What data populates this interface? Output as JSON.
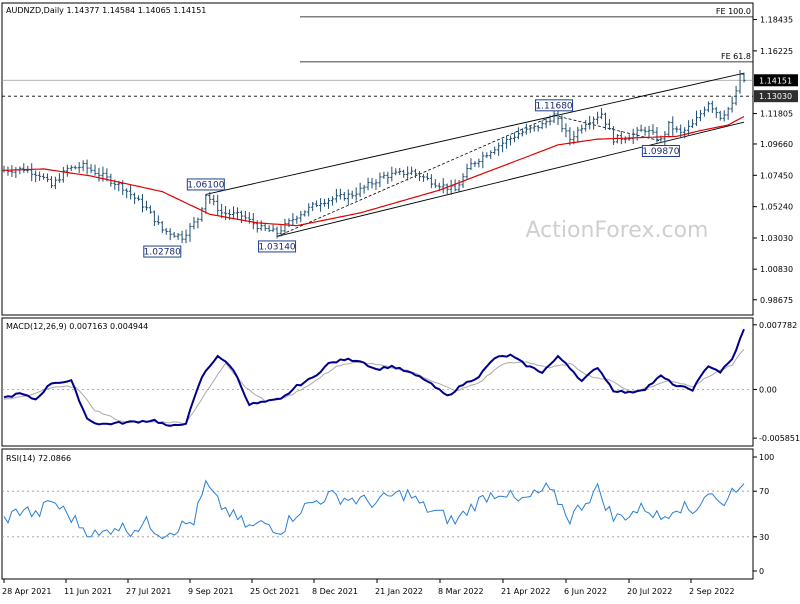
{
  "colors": {
    "background": "#ffffff",
    "frame": "#000000",
    "bars": "#1f4e6e",
    "ma_line": "#e00000",
    "channel": "#000000",
    "dashed_level": "#000000",
    "macd_line": "#00008b",
    "signal_line": "#aaaaaa",
    "rsi_line": "#2a7fd4",
    "label_border": "#1f3f8f",
    "last_price_bg": "#000000",
    "level_bg": "#2f2f2f",
    "watermark": "#c8c8c8"
  },
  "watermark": "ActionForex.com",
  "chart_data": [
    {
      "type": "ohlc",
      "title": "AUDNZD,Daily  1.14377 1.14584 1.14065 1.14151",
      "ylim": [
        0.976,
        1.196
      ],
      "y_ticks": [
        0.98675,
        1.0083,
        1.0303,
        1.0524,
        1.0745,
        1.0966,
        1.11805,
        1.14151,
        1.16225,
        1.18435
      ],
      "y_tick_labels": [
        "0.98675",
        "1.00830",
        "1.03030",
        "1.05240",
        "1.07450",
        "1.09660",
        "1.11805",
        "1.14151",
        "1.16225",
        "1.18435"
      ],
      "last_price": {
        "value": 1.14151,
        "label": "1.14151"
      },
      "dashed_level": {
        "value": 1.1303,
        "label": "1.13030"
      },
      "projection_levels": [
        {
          "value": 1.1862,
          "label": "FE 100.0"
        },
        {
          "value": 1.1545,
          "label": "FE 61.8"
        }
      ],
      "annotations": [
        {
          "value": 1.061,
          "label": "1.06100",
          "date_index": 51
        },
        {
          "value": 1.0278,
          "label": "1.02780",
          "date_index": 40
        },
        {
          "value": 1.0314,
          "label": "1.03140",
          "date_index": 69
        },
        {
          "value": 1.1168,
          "label": "1.11680",
          "date_index": 139
        },
        {
          "value": 1.0987,
          "label": "1.09870",
          "date_index": 166
        }
      ],
      "channel_lines": [
        {
          "from": [
            51,
            1.061
          ],
          "to": [
            187,
            1.1465
          ]
        },
        {
          "from": [
            69,
            1.0314
          ],
          "to": [
            187,
            1.112
          ]
        }
      ],
      "dashed_lines": [
        {
          "from": [
            69,
            1.0314
          ],
          "to": [
            139,
            1.1168
          ]
        },
        {
          "from": [
            139,
            1.1168
          ],
          "to": [
            166,
            1.0987
          ]
        }
      ],
      "ma_anchors": [
        [
          0,
          1.078
        ],
        [
          10,
          1.079
        ],
        [
          22,
          1.074
        ],
        [
          40,
          1.063
        ],
        [
          52,
          1.047
        ],
        [
          64,
          1.041
        ],
        [
          74,
          1.039
        ],
        [
          90,
          1.048
        ],
        [
          110,
          1.064
        ],
        [
          126,
          1.081
        ],
        [
          140,
          1.096
        ],
        [
          150,
          1.1
        ],
        [
          160,
          1.101
        ],
        [
          170,
          1.102
        ],
        [
          176,
          1.106
        ],
        [
          183,
          1.11
        ],
        [
          187,
          1.116
        ]
      ],
      "price_anchors": [
        [
          0,
          1.078
        ],
        [
          5,
          1.079
        ],
        [
          9,
          1.075
        ],
        [
          12,
          1.067
        ],
        [
          16,
          1.079
        ],
        [
          20,
          1.081
        ],
        [
          25,
          1.074
        ],
        [
          30,
          1.066
        ],
        [
          36,
          1.051
        ],
        [
          40,
          1.036
        ],
        [
          45,
          1.031
        ],
        [
          49,
          1.044
        ],
        [
          51,
          1.061
        ],
        [
          55,
          1.048
        ],
        [
          60,
          1.046
        ],
        [
          65,
          1.037
        ],
        [
          69,
          1.034
        ],
        [
          74,
          1.046
        ],
        [
          80,
          1.056
        ],
        [
          88,
          1.061
        ],
        [
          96,
          1.074
        ],
        [
          103,
          1.077
        ],
        [
          109,
          1.069
        ],
        [
          114,
          1.064
        ],
        [
          118,
          1.082
        ],
        [
          124,
          1.094
        ],
        [
          130,
          1.104
        ],
        [
          136,
          1.11
        ],
        [
          139,
          1.117
        ],
        [
          143,
          1.1
        ],
        [
          147,
          1.112
        ],
        [
          151,
          1.118
        ],
        [
          154,
          1.1
        ],
        [
          158,
          1.102
        ],
        [
          162,
          1.107
        ],
        [
          166,
          1.099
        ],
        [
          168,
          1.11
        ],
        [
          171,
          1.104
        ],
        [
          174,
          1.11
        ],
        [
          178,
          1.126
        ],
        [
          181,
          1.116
        ],
        [
          184,
          1.124
        ],
        [
          186,
          1.144
        ],
        [
          187,
          1.1415
        ]
      ]
    },
    {
      "type": "line",
      "title": "MACD(12,26,9) 0.007163 0.004944",
      "ylim": [
        -0.0068,
        0.0086
      ],
      "y_ticks": [
        0.007782,
        0.0,
        -0.005851
      ],
      "y_tick_labels": [
        "0.007782",
        "0.00",
        "-0.005851"
      ],
      "series": [
        {
          "role": "main",
          "values": [
            [
              0,
              -0.001
            ],
            [
              4,
              -0.0005
            ],
            [
              8,
              -0.0012
            ],
            [
              12,
              0.0008
            ],
            [
              17,
              0.001
            ],
            [
              21,
              -0.0035
            ],
            [
              24,
              -0.0042
            ],
            [
              30,
              -0.004
            ],
            [
              38,
              -0.0037
            ],
            [
              42,
              -0.0045
            ],
            [
              46,
              -0.004
            ],
            [
              50,
              0.0015
            ],
            [
              54,
              0.0041
            ],
            [
              58,
              0.0024
            ],
            [
              62,
              -0.0018
            ],
            [
              66,
              -0.0015
            ],
            [
              70,
              -0.0012
            ],
            [
              74,
              0.0004
            ],
            [
              78,
              0.0014
            ],
            [
              82,
              0.0031
            ],
            [
              86,
              0.0036
            ],
            [
              90,
              0.0035
            ],
            [
              94,
              0.0024
            ],
            [
              98,
              0.0028
            ],
            [
              102,
              0.0021
            ],
            [
              106,
              0.0013
            ],
            [
              112,
              -0.0008
            ],
            [
              116,
              0.0006
            ],
            [
              120,
              0.0016
            ],
            [
              124,
              0.0038
            ],
            [
              128,
              0.0041
            ],
            [
              132,
              0.0029
            ],
            [
              136,
              0.0021
            ],
            [
              140,
              0.0039
            ],
            [
              142,
              0.0032
            ],
            [
              146,
              0.001
            ],
            [
              150,
              0.0027
            ],
            [
              154,
              -0.0001
            ],
            [
              158,
              -0.0004
            ],
            [
              162,
              0.0001
            ],
            [
              166,
              0.0016
            ],
            [
              170,
              0.0004
            ],
            [
              174,
              0.0
            ],
            [
              178,
              0.0029
            ],
            [
              181,
              0.0021
            ],
            [
              184,
              0.0036
            ],
            [
              187,
              0.0072
            ]
          ]
        },
        {
          "role": "signal",
          "values": [
            [
              0,
              -0.0012
            ],
            [
              6,
              -0.0008
            ],
            [
              12,
              0.0002
            ],
            [
              18,
              0.0004
            ],
            [
              23,
              -0.0025
            ],
            [
              30,
              -0.0039
            ],
            [
              40,
              -0.0039
            ],
            [
              46,
              -0.004
            ],
            [
              52,
              0.0003
            ],
            [
              56,
              0.0032
            ],
            [
              61,
              0.0003
            ],
            [
              66,
              -0.0014
            ],
            [
              72,
              -0.0008
            ],
            [
              78,
              0.0008
            ],
            [
              84,
              0.0028
            ],
            [
              90,
              0.0033
            ],
            [
              96,
              0.0028
            ],
            [
              102,
              0.0023
            ],
            [
              108,
              0.0011
            ],
            [
              114,
              -0.0002
            ],
            [
              120,
              0.0008
            ],
            [
              126,
              0.0031
            ],
            [
              132,
              0.0033
            ],
            [
              138,
              0.0026
            ],
            [
              143,
              0.0031
            ],
            [
              148,
              0.0016
            ],
            [
              154,
              0.001
            ],
            [
              158,
              -0.0003
            ],
            [
              164,
              0.0004
            ],
            [
              168,
              0.0011
            ],
            [
              174,
              0.0004
            ],
            [
              180,
              0.0021
            ],
            [
              184,
              0.0029
            ],
            [
              187,
              0.0049
            ]
          ]
        }
      ]
    },
    {
      "type": "line",
      "title": "RSI(14) 72.0866",
      "ylim": [
        0,
        100
      ],
      "y_ticks": [
        100,
        70,
        30,
        0
      ],
      "y_tick_labels": [
        "100",
        "70",
        "30",
        "0"
      ],
      "levels": [
        70,
        30
      ],
      "series": [
        {
          "role": "main",
          "values": [
            [
              0,
              45
            ],
            [
              5,
              55
            ],
            [
              8,
              48
            ],
            [
              12,
              62
            ],
            [
              16,
              50
            ],
            [
              20,
              38
            ],
            [
              24,
              30
            ],
            [
              28,
              40
            ],
            [
              32,
              36
            ],
            [
              36,
              42
            ],
            [
              40,
              33
            ],
            [
              44,
              38
            ],
            [
              48,
              44
            ],
            [
              51,
              76
            ],
            [
              54,
              60
            ],
            [
              58,
              48
            ],
            [
              62,
              38
            ],
            [
              66,
              42
            ],
            [
              70,
              36
            ],
            [
              74,
              52
            ],
            [
              78,
              60
            ],
            [
              82,
              66
            ],
            [
              86,
              64
            ],
            [
              90,
              62
            ],
            [
              94,
              60
            ],
            [
              98,
              66
            ],
            [
              102,
              68
            ],
            [
              106,
              56
            ],
            [
              110,
              50
            ],
            [
              114,
              43
            ],
            [
              118,
              56
            ],
            [
              122,
              66
            ],
            [
              126,
              70
            ],
            [
              130,
              60
            ],
            [
              134,
              66
            ],
            [
              137,
              72
            ],
            [
              140,
              62
            ],
            [
              143,
              46
            ],
            [
              146,
              58
            ],
            [
              150,
              72
            ],
            [
              154,
              46
            ],
            [
              158,
              50
            ],
            [
              162,
              56
            ],
            [
              166,
              46
            ],
            [
              170,
              58
            ],
            [
              174,
              52
            ],
            [
              178,
              70
            ],
            [
              181,
              58
            ],
            [
              184,
              70
            ],
            [
              186,
              78
            ],
            [
              187,
              72
            ]
          ]
        }
      ]
    }
  ],
  "x_axis": {
    "labels": [
      "28 Apr 2021",
      "11 Jun 2021",
      "27 Jul 2021",
      "9 Sep 2021",
      "25 Oct 2021",
      "8 Dec 2021",
      "21 Jan 2022",
      "8 Mar 2022",
      "21 Apr 2022",
      "6 Jun 2022",
      "20 Jul 2022",
      "2 Sep 2022"
    ],
    "label_indices": [
      0,
      10,
      21,
      32,
      43,
      54,
      64,
      75,
      86,
      97,
      108,
      119
    ]
  }
}
